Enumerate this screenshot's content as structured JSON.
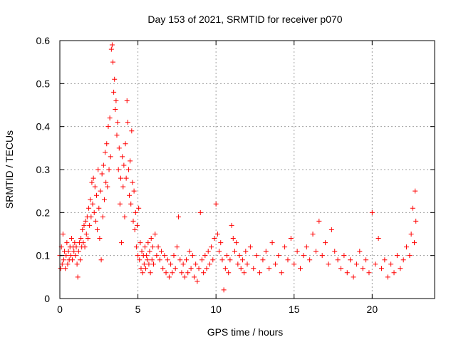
{
  "chart_data": {
    "type": "scatter",
    "title": "Day 153 of 2021, SRMTID for receiver p070",
    "xlabel": "GPS time / hours",
    "ylabel": "SRMTID / TECUs",
    "xlim": [
      0,
      24
    ],
    "ylim": [
      0,
      0.6
    ],
    "xticks": [
      0,
      5,
      10,
      15,
      20
    ],
    "xtick_labels": [
      "0",
      "5",
      "10",
      "15",
      "20"
    ],
    "yticks": [
      0,
      0.1,
      0.2,
      0.3,
      0.4,
      0.5,
      0.6
    ],
    "ytick_labels": [
      "0",
      "0.1",
      "0.2",
      "0.3",
      "0.4",
      "0.5",
      "0.6"
    ],
    "grid": true,
    "marker": "plus",
    "color": "#ff0000",
    "series": [
      {
        "name": "SRMTID",
        "points": [
          [
            0.0,
            0.1
          ],
          [
            0.05,
            0.07
          ],
          [
            0.1,
            0.12
          ],
          [
            0.15,
            0.08
          ],
          [
            0.2,
            0.15
          ],
          [
            0.25,
            0.09
          ],
          [
            0.3,
            0.11
          ],
          [
            0.35,
            0.07
          ],
          [
            0.4,
            0.1
          ],
          [
            0.45,
            0.13
          ],
          [
            0.5,
            0.08
          ],
          [
            0.55,
            0.11
          ],
          [
            0.6,
            0.09
          ],
          [
            0.65,
            0.12
          ],
          [
            0.7,
            0.1
          ],
          [
            0.75,
            0.14
          ],
          [
            0.8,
            0.09
          ],
          [
            0.85,
            0.12
          ],
          [
            0.9,
            0.11
          ],
          [
            0.95,
            0.13
          ],
          [
            1.0,
            0.1
          ],
          [
            1.05,
            0.12
          ],
          [
            1.1,
            0.08
          ],
          [
            1.15,
            0.05
          ],
          [
            1.2,
            0.11
          ],
          [
            1.25,
            0.13
          ],
          [
            1.3,
            0.09
          ],
          [
            1.35,
            0.14
          ],
          [
            1.4,
            0.12
          ],
          [
            1.45,
            0.16
          ],
          [
            1.5,
            0.13
          ],
          [
            1.55,
            0.17
          ],
          [
            1.6,
            0.12
          ],
          [
            1.65,
            0.18
          ],
          [
            1.7,
            0.15
          ],
          [
            1.75,
            0.19
          ],
          [
            1.8,
            0.14
          ],
          [
            1.85,
            0.21
          ],
          [
            1.9,
            0.17
          ],
          [
            1.95,
            0.23
          ],
          [
            2.0,
            0.19
          ],
          [
            2.05,
            0.27
          ],
          [
            2.1,
            0.22
          ],
          [
            2.15,
            0.28
          ],
          [
            2.2,
            0.2
          ],
          [
            2.25,
            0.26
          ],
          [
            2.3,
            0.18
          ],
          [
            2.35,
            0.24
          ],
          [
            2.4,
            0.16
          ],
          [
            2.45,
            0.3
          ],
          [
            2.5,
            0.21
          ],
          [
            2.55,
            0.14
          ],
          [
            2.6,
            0.25
          ],
          [
            2.65,
            0.09
          ],
          [
            2.7,
            0.29
          ],
          [
            2.75,
            0.19
          ],
          [
            2.8,
            0.31
          ],
          [
            2.85,
            0.23
          ],
          [
            2.9,
            0.34
          ],
          [
            2.95,
            0.27
          ],
          [
            3.0,
            0.36
          ],
          [
            3.05,
            0.26
          ],
          [
            3.1,
            0.4
          ],
          [
            3.15,
            0.3
          ],
          [
            3.2,
            0.42
          ],
          [
            3.25,
            0.33
          ],
          [
            3.3,
            0.58
          ],
          [
            3.35,
            0.59
          ],
          [
            3.4,
            0.55
          ],
          [
            3.45,
            0.48
          ],
          [
            3.5,
            0.51
          ],
          [
            3.55,
            0.44
          ],
          [
            3.6,
            0.46
          ],
          [
            3.65,
            0.38
          ],
          [
            3.7,
            0.41
          ],
          [
            3.75,
            0.3
          ],
          [
            3.8,
            0.35
          ],
          [
            3.85,
            0.22
          ],
          [
            3.9,
            0.28
          ],
          [
            3.95,
            0.13
          ],
          [
            4.0,
            0.33
          ],
          [
            4.05,
            0.26
          ],
          [
            4.1,
            0.31
          ],
          [
            4.15,
            0.19
          ],
          [
            4.2,
            0.36
          ],
          [
            4.25,
            0.28
          ],
          [
            4.3,
            0.46
          ],
          [
            4.35,
            0.41
          ],
          [
            4.4,
            0.3
          ],
          [
            4.45,
            0.24
          ],
          [
            4.5,
            0.32
          ],
          [
            4.55,
            0.22
          ],
          [
            4.6,
            0.39
          ],
          [
            4.65,
            0.27
          ],
          [
            4.7,
            0.18
          ],
          [
            4.75,
            0.25
          ],
          [
            4.8,
            0.16
          ],
          [
            4.85,
            0.2
          ],
          [
            4.9,
            0.12
          ],
          [
            4.95,
            0.17
          ],
          [
            5.0,
            0.1
          ],
          [
            5.05,
            0.21
          ],
          [
            5.1,
            0.09
          ],
          [
            5.15,
            0.13
          ],
          [
            5.2,
            0.07
          ],
          [
            5.25,
            0.11
          ],
          [
            5.3,
            0.06
          ],
          [
            5.35,
            0.1
          ],
          [
            5.4,
            0.08
          ],
          [
            5.45,
            0.12
          ],
          [
            5.5,
            0.07
          ],
          [
            5.55,
            0.1
          ],
          [
            5.6,
            0.09
          ],
          [
            5.65,
            0.13
          ],
          [
            5.7,
            0.08
          ],
          [
            5.75,
            0.11
          ],
          [
            5.8,
            0.06
          ],
          [
            5.85,
            0.14
          ],
          [
            5.9,
            0.09
          ],
          [
            5.95,
            0.12
          ],
          [
            6.0,
            0.08
          ],
          [
            6.1,
            0.15
          ],
          [
            6.2,
            0.1
          ],
          [
            6.3,
            0.12
          ],
          [
            6.4,
            0.09
          ],
          [
            6.5,
            0.11
          ],
          [
            6.6,
            0.07
          ],
          [
            6.7,
            0.1
          ],
          [
            6.8,
            0.06
          ],
          [
            6.9,
            0.09
          ],
          [
            7.0,
            0.05
          ],
          [
            7.1,
            0.08
          ],
          [
            7.2,
            0.06
          ],
          [
            7.3,
            0.1
          ],
          [
            7.4,
            0.07
          ],
          [
            7.5,
            0.12
          ],
          [
            7.6,
            0.19
          ],
          [
            7.7,
            0.09
          ],
          [
            7.8,
            0.06
          ],
          [
            7.9,
            0.08
          ],
          [
            8.0,
            0.05
          ],
          [
            8.1,
            0.09
          ],
          [
            8.2,
            0.06
          ],
          [
            8.3,
            0.11
          ],
          [
            8.4,
            0.07
          ],
          [
            8.5,
            0.1
          ],
          [
            8.6,
            0.05
          ],
          [
            8.7,
            0.08
          ],
          [
            8.8,
            0.04
          ],
          [
            8.9,
            0.07
          ],
          [
            9.0,
            0.2
          ],
          [
            9.1,
            0.09
          ],
          [
            9.2,
            0.06
          ],
          [
            9.3,
            0.1
          ],
          [
            9.4,
            0.07
          ],
          [
            9.5,
            0.11
          ],
          [
            9.6,
            0.08
          ],
          [
            9.7,
            0.12
          ],
          [
            9.8,
            0.09
          ],
          [
            9.9,
            0.14
          ],
          [
            10.0,
            0.22
          ],
          [
            10.1,
            0.15
          ],
          [
            10.2,
            0.11
          ],
          [
            10.3,
            0.13
          ],
          [
            10.4,
            0.09
          ],
          [
            10.5,
            0.02
          ],
          [
            10.6,
            0.07
          ],
          [
            10.7,
            0.1
          ],
          [
            10.8,
            0.06
          ],
          [
            10.9,
            0.09
          ],
          [
            11.0,
            0.17
          ],
          [
            11.1,
            0.14
          ],
          [
            11.2,
            0.11
          ],
          [
            11.3,
            0.13
          ],
          [
            11.4,
            0.08
          ],
          [
            11.5,
            0.1
          ],
          [
            11.6,
            0.07
          ],
          [
            11.7,
            0.09
          ],
          [
            11.8,
            0.06
          ],
          [
            11.9,
            0.11
          ],
          [
            12.0,
            0.08
          ],
          [
            12.2,
            0.12
          ],
          [
            12.4,
            0.07
          ],
          [
            12.6,
            0.1
          ],
          [
            12.8,
            0.06
          ],
          [
            13.0,
            0.09
          ],
          [
            13.2,
            0.11
          ],
          [
            13.4,
            0.07
          ],
          [
            13.6,
            0.13
          ],
          [
            13.8,
            0.08
          ],
          [
            14.0,
            0.1
          ],
          [
            14.2,
            0.06
          ],
          [
            14.4,
            0.12
          ],
          [
            14.6,
            0.09
          ],
          [
            14.8,
            0.14
          ],
          [
            15.0,
            0.08
          ],
          [
            15.2,
            0.11
          ],
          [
            15.4,
            0.07
          ],
          [
            15.6,
            0.1
          ],
          [
            15.8,
            0.12
          ],
          [
            16.0,
            0.09
          ],
          [
            16.2,
            0.15
          ],
          [
            16.4,
            0.11
          ],
          [
            16.6,
            0.18
          ],
          [
            16.8,
            0.1
          ],
          [
            17.0,
            0.13
          ],
          [
            17.2,
            0.08
          ],
          [
            17.4,
            0.16
          ],
          [
            17.6,
            0.11
          ],
          [
            17.8,
            0.09
          ],
          [
            18.0,
            0.07
          ],
          [
            18.2,
            0.1
          ],
          [
            18.4,
            0.06
          ],
          [
            18.6,
            0.09
          ],
          [
            18.8,
            0.05
          ],
          [
            19.0,
            0.08
          ],
          [
            19.2,
            0.11
          ],
          [
            19.4,
            0.07
          ],
          [
            19.6,
            0.09
          ],
          [
            19.8,
            0.06
          ],
          [
            20.0,
            0.2
          ],
          [
            20.2,
            0.08
          ],
          [
            20.4,
            0.14
          ],
          [
            20.6,
            0.07
          ],
          [
            20.8,
            0.09
          ],
          [
            21.0,
            0.05
          ],
          [
            21.2,
            0.08
          ],
          [
            21.4,
            0.06
          ],
          [
            21.6,
            0.1
          ],
          [
            21.8,
            0.07
          ],
          [
            22.0,
            0.09
          ],
          [
            22.2,
            0.12
          ],
          [
            22.4,
            0.1
          ],
          [
            22.5,
            0.15
          ],
          [
            22.6,
            0.21
          ],
          [
            22.7,
            0.13
          ],
          [
            22.75,
            0.25
          ],
          [
            22.8,
            0.18
          ]
        ]
      }
    ]
  }
}
